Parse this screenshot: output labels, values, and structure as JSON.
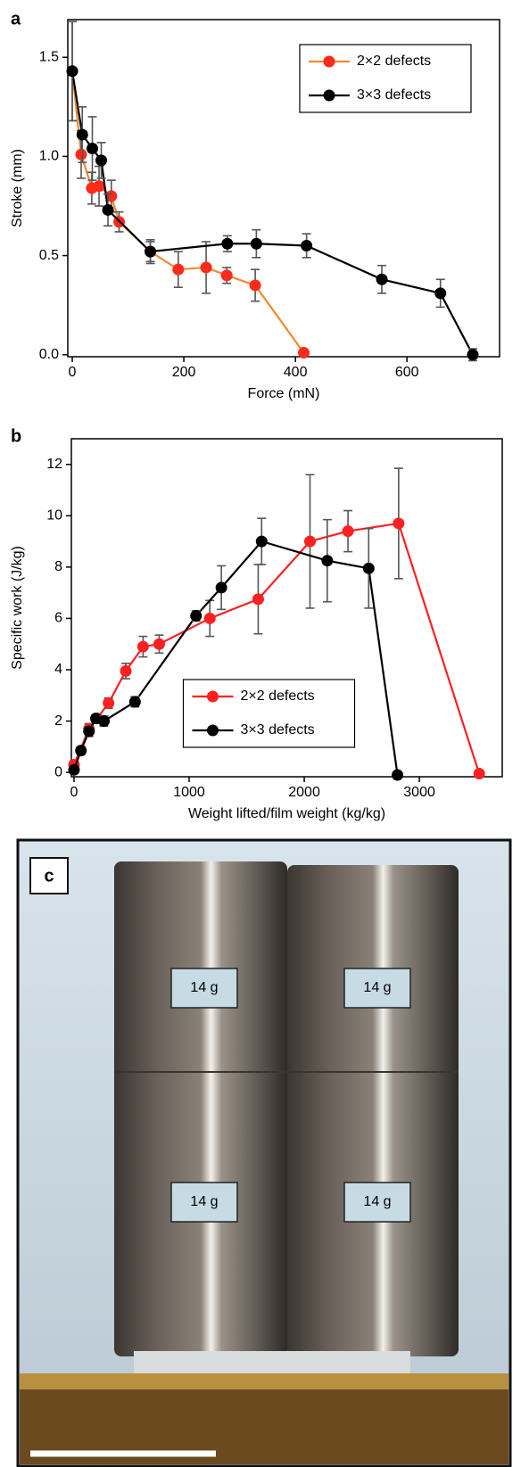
{
  "chart_data": [
    {
      "type": "line",
      "panel_label": "a",
      "x_label": "Force (mN)",
      "y_label": "Stroke (mm)",
      "xlim": [
        -8,
        766
      ],
      "ylim": [
        -0.01,
        1.69
      ],
      "xticks": [
        0,
        200,
        400,
        600
      ],
      "yticks": [
        {
          "value": 0,
          "label": "0.0"
        },
        {
          "value": 0.5,
          "label": "0.5"
        },
        {
          "value": 1,
          "label": "1.0"
        },
        {
          "value": 1.5,
          "label": "1.5"
        }
      ],
      "legend": "upper right",
      "series": [
        {
          "name": "2×2 defects",
          "color": "#f08a30",
          "marker_color": "#ff2a1a",
          "x": [
            0,
            16,
            35,
            48,
            70,
            84,
            140,
            190,
            240,
            277,
            328,
            415
          ],
          "values": [
            1.43,
            1.01,
            0.84,
            0.85,
            0.8,
            0.67,
            0.52,
            0.43,
            0.44,
            0.4,
            0.35,
            0.01
          ],
          "errors": [
            0.25,
            0.12,
            0.08,
            0.1,
            0.08,
            0.05,
            0.05,
            0.09,
            0.13,
            0.04,
            0.08,
            0
          ]
        },
        {
          "name": "3×3 defects",
          "color": "#000000",
          "marker_color": "#000000",
          "x": [
            0,
            18,
            36,
            52,
            64,
            140,
            278,
            330,
            420,
            555,
            660,
            718
          ],
          "values": [
            1.43,
            1.11,
            1.04,
            0.98,
            0.73,
            0.52,
            0.56,
            0.56,
            0.55,
            0.38,
            0.31,
            0.0
          ],
          "errors": [
            0.25,
            0.14,
            0.16,
            0.09,
            0.08,
            0.06,
            0.04,
            0.07,
            0.06,
            0.07,
            0.07,
            0.03
          ]
        }
      ]
    },
    {
      "type": "line",
      "panel_label": "b",
      "x_label": "Weight lifted/film weight (kg/kg)",
      "y_label": "Specific work (J/kg)",
      "xlim": [
        -23,
        3720
      ],
      "ylim": [
        -0.17,
        13
      ],
      "xticks": [
        0,
        1000,
        2000,
        3000
      ],
      "yticks": [
        0,
        2,
        4,
        6,
        8,
        10,
        12
      ],
      "legend": "lower center",
      "series": [
        {
          "name": "2×2 defects",
          "color": "#ff2020",
          "marker_color": "#ff2020",
          "x": [
            0,
            130,
            200,
            300,
            450,
            600,
            740,
            1180,
            1600,
            2050,
            2380,
            2820,
            3520
          ],
          "values": [
            0.3,
            1.7,
            2.1,
            2.7,
            3.95,
            4.9,
            5.0,
            6.0,
            6.75,
            9.0,
            9.4,
            9.7,
            -0.05
          ],
          "errors": [
            0.15,
            0.2,
            0.15,
            0.2,
            0.3,
            0.4,
            0.35,
            0.7,
            1.35,
            2.6,
            0.8,
            2.15,
            0
          ]
        },
        {
          "name": "3×3 defects",
          "color": "#000000",
          "marker_color": "#000000",
          "x": [
            0,
            60,
            130,
            190,
            260,
            530,
            1060,
            1280,
            1630,
            2200,
            2560,
            2810
          ],
          "values": [
            0.1,
            0.85,
            1.6,
            2.1,
            2.0,
            2.75,
            6.1,
            7.2,
            9.0,
            8.25,
            7.95,
            -0.1
          ],
          "errors": [
            0.1,
            0.15,
            0.2,
            0.15,
            0.2,
            0.2,
            0.2,
            0.85,
            0.9,
            1.6,
            1.55,
            0
          ]
        }
      ]
    }
  ],
  "photo": {
    "panel_label": "c",
    "tags": [
      "14 g",
      "14 g",
      "14 g",
      "14 g"
    ]
  }
}
